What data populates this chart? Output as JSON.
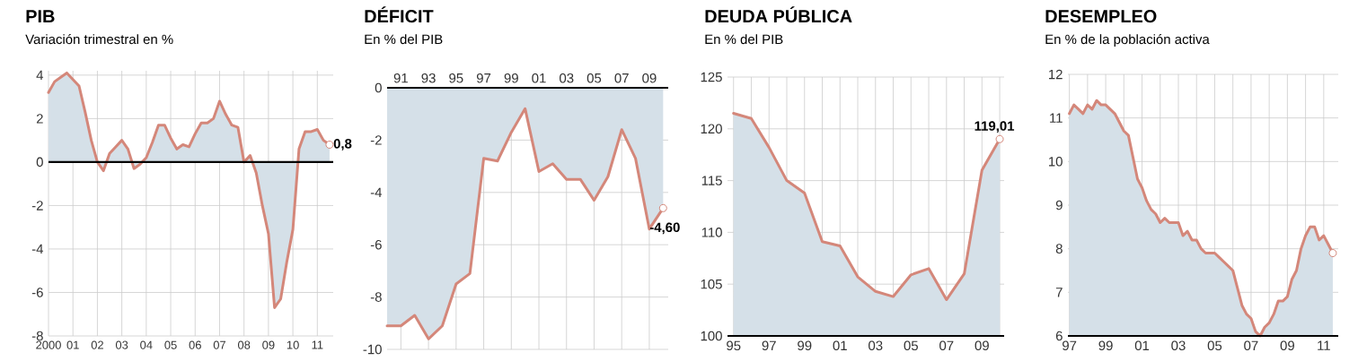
{
  "chart_data": [
    {
      "type": "area",
      "title": "PIB",
      "subtitle": "Variación trimestral en %",
      "color": "#d4877a",
      "x": [
        2000,
        2000.25,
        2000.5,
        2000.75,
        2001,
        2001.25,
        2001.5,
        2001.75,
        2002,
        2002.25,
        2002.5,
        2002.75,
        2003,
        2003.25,
        2003.5,
        2003.75,
        2004,
        2004.25,
        2004.5,
        2004.75,
        2005,
        2005.25,
        2005.5,
        2005.75,
        2006,
        2006.25,
        2006.5,
        2006.75,
        2007,
        2007.25,
        2007.5,
        2007.75,
        2008,
        2008.25,
        2008.5,
        2008.75,
        2009,
        2009.25,
        2009.5,
        2009.75,
        2010,
        2010.25,
        2010.5,
        2010.75,
        2011,
        2011.25,
        2011.5
      ],
      "values": [
        3.2,
        3.7,
        3.9,
        4.1,
        3.8,
        3.5,
        2.3,
        1.0,
        0.0,
        -0.4,
        0.4,
        0.7,
        1.0,
        0.6,
        -0.3,
        -0.1,
        0.2,
        0.9,
        1.7,
        1.7,
        1.1,
        0.6,
        0.8,
        0.7,
        1.3,
        1.8,
        1.8,
        2.0,
        2.8,
        2.2,
        1.7,
        1.6,
        0.0,
        0.3,
        -0.5,
        -2.0,
        -3.3,
        -6.7,
        -6.3,
        -4.6,
        -3.1,
        0.6,
        1.4,
        1.4,
        1.5,
        1.0,
        0.8
      ],
      "xlim": [
        2000,
        2011.65
      ],
      "xticks": [
        2000,
        {
          "value": 2001,
          "label": "01"
        },
        {
          "value": 2002,
          "label": "02"
        },
        {
          "value": 2003,
          "label": "03"
        },
        {
          "value": 2004,
          "label": "04"
        },
        {
          "value": 2005,
          "label": "05"
        },
        {
          "value": 2006,
          "label": "06"
        },
        {
          "value": 2007,
          "label": "07"
        },
        {
          "value": 2008,
          "label": "08"
        },
        {
          "value": 2009,
          "label": "09"
        },
        {
          "value": 2010,
          "label": "10"
        },
        {
          "value": 2011,
          "label": "11"
        }
      ],
      "ylim": [
        -8,
        4.2
      ],
      "yticks": [
        -8,
        -6,
        -4,
        -2,
        0,
        2,
        4
      ],
      "grid": true,
      "annotations": [
        "0,8"
      ]
    },
    {
      "type": "area",
      "title": "DÉFICIT",
      "subtitle": "En % del PIB",
      "color": "#d4877a",
      "x": [
        1990,
        1991,
        1992,
        1993,
        1994,
        1995,
        1996,
        1997,
        1998,
        1999,
        2000,
        2001,
        2002,
        2003,
        2004,
        2005,
        2006,
        2007,
        2008,
        2009,
        2010
      ],
      "values": [
        -9.1,
        -9.1,
        -8.7,
        -9.6,
        -9.1,
        -7.5,
        -7.1,
        -2.7,
        -2.8,
        -1.7,
        -0.8,
        -3.2,
        -2.9,
        -3.5,
        -3.5,
        -4.3,
        -3.4,
        -1.6,
        -2.7,
        -5.4,
        -4.6
      ],
      "xlim": [
        1990,
        2010.37
      ],
      "xticks": [
        {
          "value": 1991,
          "label": "91"
        },
        {
          "value": 1993,
          "label": "93"
        },
        {
          "value": 1995,
          "label": "95"
        },
        {
          "value": 1997,
          "label": "97"
        },
        {
          "value": 1999,
          "label": "99"
        },
        {
          "value": 2001,
          "label": "01"
        },
        {
          "value": 2003,
          "label": "03"
        },
        {
          "value": 2005,
          "label": "05"
        },
        {
          "value": 2007,
          "label": "07"
        },
        {
          "value": 2009,
          "label": "09"
        }
      ],
      "ylim": [
        -10,
        0
      ],
      "yticks": [
        -10,
        -8,
        -6,
        -4,
        -2,
        0
      ],
      "grid": true,
      "annotations": [
        "-4,60"
      ]
    },
    {
      "type": "area",
      "title": "DEUDA PÚBLICA",
      "subtitle": "En % del PIB",
      "color": "#d4877a",
      "x": [
        1995,
        1996,
        1997,
        1998,
        1999,
        2000,
        2001,
        2002,
        2003,
        2004,
        2005,
        2006,
        2007,
        2008,
        2009,
        2010
      ],
      "values": [
        121.5,
        121,
        118.2,
        115,
        113.8,
        109.1,
        108.7,
        105.7,
        104.3,
        103.8,
        105.9,
        106.5,
        103.5,
        106,
        116,
        119.01
      ],
      "xlim": [
        1994.66,
        2010.25
      ],
      "xticks": [
        {
          "value": 1995,
          "label": "95"
        },
        {
          "value": 1996,
          "label": null
        },
        {
          "value": 1997,
          "label": "97"
        },
        {
          "value": 1998,
          "label": null
        },
        {
          "value": 1999,
          "label": "99"
        },
        {
          "value": 2000,
          "label": null
        },
        {
          "value": 2001,
          "label": "01"
        },
        {
          "value": 2002,
          "label": null
        },
        {
          "value": 2003,
          "label": "03"
        },
        {
          "value": 2004,
          "label": null
        },
        {
          "value": 2005,
          "label": "05"
        },
        {
          "value": 2006,
          "label": null
        },
        {
          "value": 2007,
          "label": "07"
        },
        {
          "value": 2008,
          "label": null
        },
        {
          "value": 2009,
          "label": "09"
        },
        {
          "value": 2010,
          "label": null
        }
      ],
      "ylim": [
        100,
        125
      ],
      "yticks": [
        100,
        105,
        110,
        115,
        120,
        125
      ],
      "grid": true,
      "annotations": [
        "119,01"
      ]
    },
    {
      "type": "area",
      "title": "DESEMPLEO",
      "subtitle": "En % de la población activa",
      "color": "#d4877a",
      "x": [
        1997,
        1997.25,
        1997.5,
        1997.75,
        1998,
        1998.25,
        1998.5,
        1998.75,
        1999,
        1999.25,
        1999.5,
        1999.75,
        2000,
        2000.25,
        2000.5,
        2000.75,
        2001,
        2001.25,
        2001.5,
        2001.75,
        2002,
        2002.25,
        2002.5,
        2002.75,
        2003,
        2003.25,
        2003.5,
        2003.75,
        2004,
        2004.25,
        2004.5,
        2004.75,
        2005,
        2005.25,
        2005.5,
        2005.75,
        2006,
        2006.25,
        2006.5,
        2006.75,
        2007,
        2007.25,
        2007.5,
        2007.75,
        2008,
        2008.25,
        2008.5,
        2008.75,
        2009,
        2009.25,
        2009.5,
        2009.75,
        2010,
        2010.25,
        2010.5,
        2010.75,
        2011,
        2011.25,
        2011.5
      ],
      "values": [
        11.1,
        11.3,
        11.2,
        11.1,
        11.3,
        11.2,
        11.4,
        11.3,
        11.3,
        11.2,
        11.1,
        10.9,
        10.7,
        10.6,
        10.1,
        9.6,
        9.4,
        9.1,
        8.9,
        8.8,
        8.6,
        8.7,
        8.6,
        8.6,
        8.6,
        8.3,
        8.4,
        8.2,
        8.2,
        8.0,
        7.9,
        7.9,
        7.9,
        7.8,
        7.7,
        7.6,
        7.5,
        7.1,
        6.7,
        6.5,
        6.4,
        6.1,
        6.0,
        6.2,
        6.3,
        6.5,
        6.8,
        6.8,
        6.9,
        7.3,
        7.5,
        8.0,
        8.3,
        8.5,
        8.5,
        8.2,
        8.3,
        8.1,
        7.9
      ],
      "xlim": [
        1996.92,
        2011.8
      ],
      "xticks": [
        {
          "value": 1997,
          "label": "97"
        },
        {
          "value": 1998,
          "label": null
        },
        {
          "value": 1999,
          "label": "99"
        },
        {
          "value": 2000,
          "label": null
        },
        {
          "value": 2001,
          "label": "01"
        },
        {
          "value": 2002,
          "label": null
        },
        {
          "value": 2003,
          "label": "03"
        },
        {
          "value": 2004,
          "label": null
        },
        {
          "value": 2005,
          "label": "05"
        },
        {
          "value": 2006,
          "label": null
        },
        {
          "value": 2007,
          "label": "07"
        },
        {
          "value": 2008,
          "label": null
        },
        {
          "value": 2009,
          "label": "09"
        },
        {
          "value": 2010,
          "label": null
        },
        {
          "value": 2011,
          "label": "11"
        }
      ],
      "ylim": [
        6,
        12
      ],
      "yticks": [
        6,
        7,
        8,
        9,
        10,
        11,
        12
      ],
      "grid": true
    }
  ]
}
